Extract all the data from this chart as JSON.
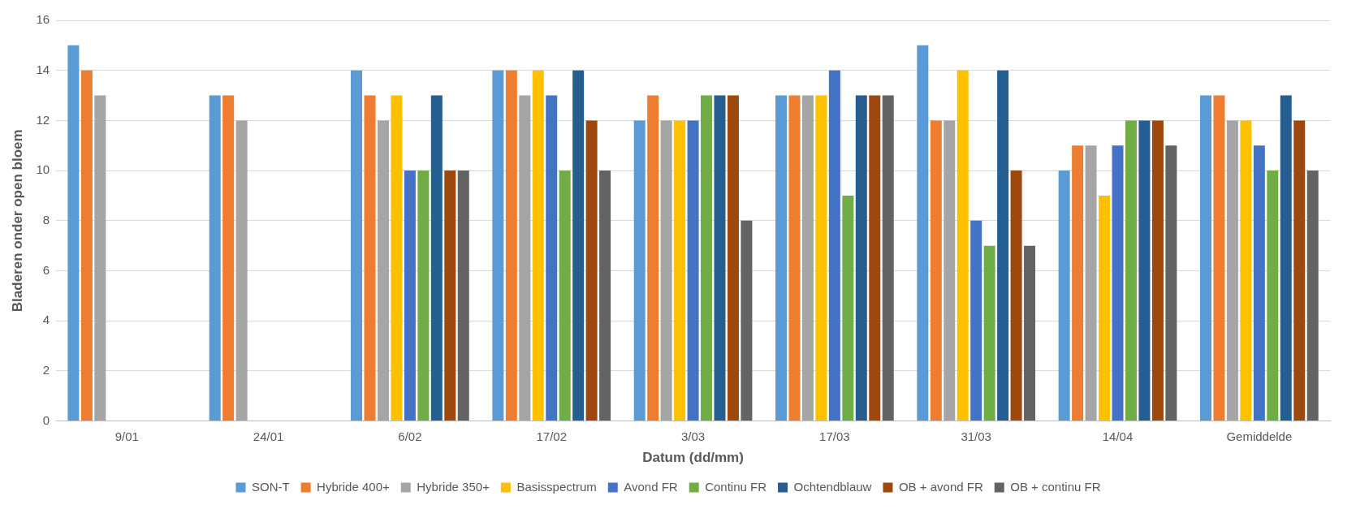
{
  "chart_data": {
    "type": "bar",
    "xlabel": "Datum (dd/mm)",
    "ylabel": "Bladeren onder open bloem",
    "categories": [
      "9/01",
      "24/01",
      "6/02",
      "17/02",
      "3/03",
      "17/03",
      "31/03",
      "14/04",
      "Gemiddelde"
    ],
    "series": [
      {
        "name": "SON-T",
        "color": "#5b9bd5",
        "values": [
          15,
          13,
          14,
          14,
          12,
          13,
          15,
          10,
          13
        ]
      },
      {
        "name": "Hybride 400+",
        "color": "#ed7d31",
        "values": [
          14,
          13,
          13,
          14,
          13,
          13,
          12,
          11,
          13
        ]
      },
      {
        "name": "Hybride 350+",
        "color": "#a5a5a5",
        "values": [
          13,
          12,
          12,
          13,
          12,
          13,
          12,
          11,
          12
        ]
      },
      {
        "name": "Basisspectrum",
        "color": "#ffc000",
        "values": [
          null,
          null,
          13,
          14,
          12,
          13,
          14,
          9,
          12
        ]
      },
      {
        "name": "Avond FR",
        "color": "#4472c4",
        "values": [
          null,
          null,
          10,
          13,
          12,
          14,
          8,
          11,
          11
        ]
      },
      {
        "name": "Continu FR",
        "color": "#70ad47",
        "values": [
          null,
          null,
          10,
          10,
          13,
          9,
          7,
          12,
          10
        ]
      },
      {
        "name": "Ochtendblauw",
        "color": "#255e91",
        "values": [
          null,
          null,
          13,
          14,
          13,
          13,
          14,
          12,
          13
        ]
      },
      {
        "name": "OB + avond FR",
        "color": "#9e480e",
        "values": [
          null,
          null,
          10,
          12,
          13,
          13,
          10,
          12,
          12
        ]
      },
      {
        "name": "OB + continu FR",
        "color": "#636363",
        "values": [
          null,
          null,
          10,
          10,
          8,
          13,
          7,
          11,
          10
        ]
      }
    ],
    "ylim": [
      0,
      16
    ],
    "yticks": [
      0,
      2,
      4,
      6,
      8,
      10,
      12,
      14,
      16
    ],
    "grid": "y",
    "legend": "bottom"
  }
}
